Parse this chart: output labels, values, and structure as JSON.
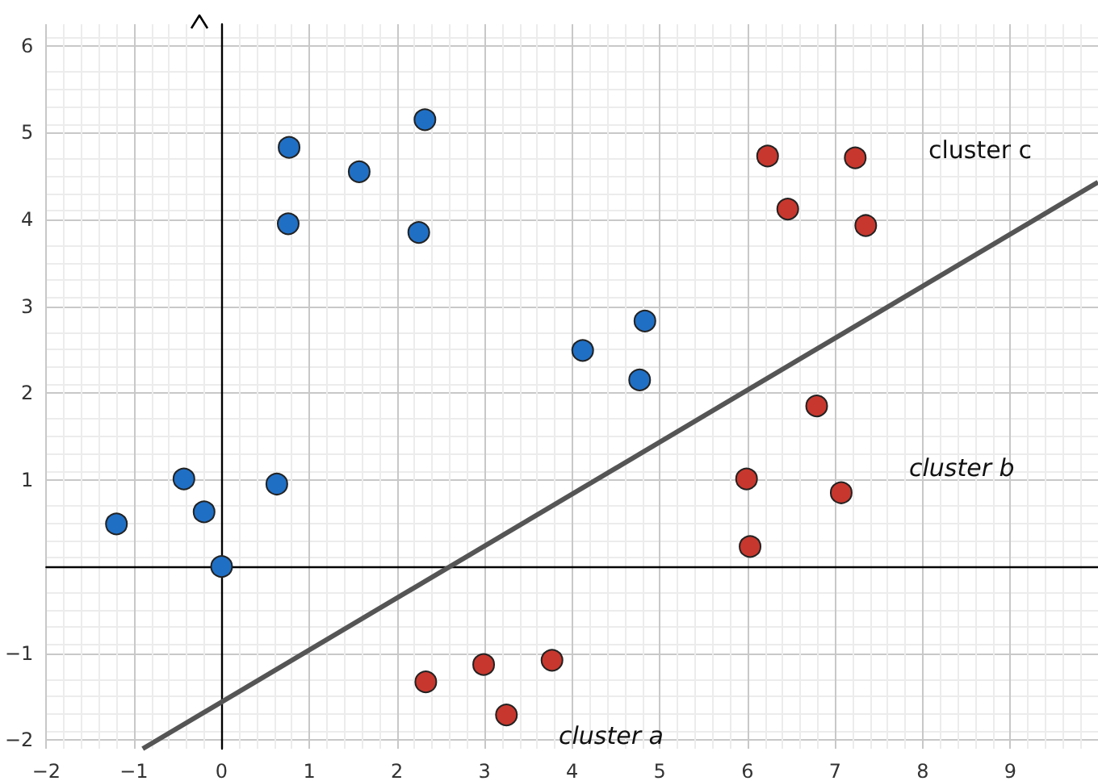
{
  "chart_data": {
    "type": "scatter",
    "xlim": [
      -2,
      10
    ],
    "ylim": [
      -2.1,
      6.25
    ],
    "xticks": [
      -2,
      -1,
      0,
      1,
      2,
      3,
      4,
      5,
      6,
      7,
      8,
      9
    ],
    "yticks": [
      -2,
      -1,
      {
        "value": 0,
        "label": null
      },
      1,
      2,
      3,
      4,
      5,
      6
    ],
    "grid": true,
    "series": [
      {
        "color": "#1f6fc5",
        "marker": "circle",
        "x": [
          -1.2,
          -0.43,
          -0.2,
          0,
          0.63,
          0.76,
          0.77,
          1.57,
          2.25,
          2.32,
          4.12,
          4.83,
          4.77
        ],
        "values": [
          0.49,
          1.01,
          0.63,
          0,
          0.95,
          3.95,
          4.83,
          4.55,
          3.85,
          5.15,
          2.49,
          2.83,
          2.15
        ]
      },
      {
        "color": "#c8372d",
        "marker": "circle",
        "x": [
          2.33,
          2.99,
          3.25,
          3.77,
          6.23,
          7.23,
          6.46,
          7.35,
          6.79,
          5.99,
          7.07,
          6.03
        ],
        "values": [
          -1.33,
          -1.13,
          -1.71,
          -1.08,
          4.73,
          4.71,
          4.12,
          3.93,
          1.85,
          1.01,
          0.85,
          0.23
        ]
      },
      {
        "type": "line",
        "color": "#555555",
        "x": [
          -0.9,
          10
        ],
        "values": [
          -2.1,
          4.43
        ]
      }
    ],
    "annotations": [
      "cluster a",
      "cluster b",
      "cluster c"
    ]
  }
}
